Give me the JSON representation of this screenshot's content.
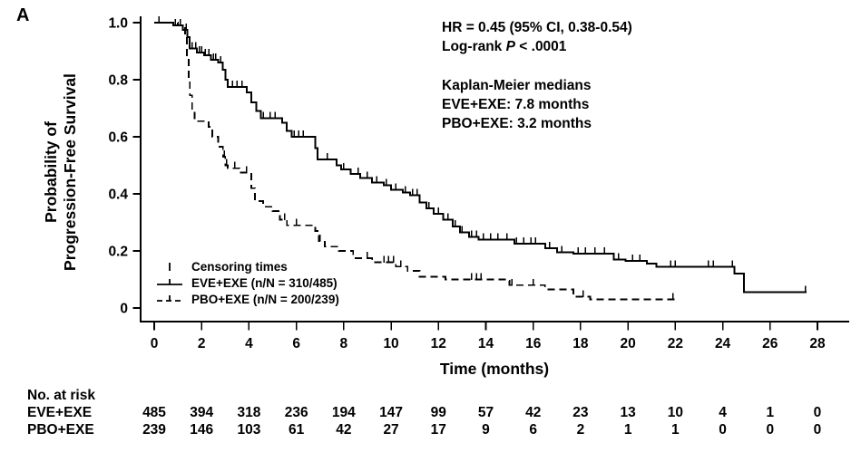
{
  "panel_label": "A",
  "y_axis": {
    "label_line1": "Probability of",
    "label_line2": "Progression-Free Survival",
    "ticks": [
      {
        "v": 1.0,
        "label": "1.0"
      },
      {
        "v": 0.8,
        "label": "0.8"
      },
      {
        "v": 0.6,
        "label": "0.6"
      },
      {
        "v": 0.4,
        "label": "0.4"
      },
      {
        "v": 0.2,
        "label": "0.2"
      },
      {
        "v": 0.0,
        "label": "0"
      }
    ]
  },
  "x_axis": {
    "label": "Time (months)",
    "ticks": [
      0,
      2,
      4,
      6,
      8,
      10,
      12,
      14,
      16,
      18,
      20,
      22,
      24,
      26,
      28
    ]
  },
  "annotations": {
    "hr_line": "HR = 0.45 (95% CI, 0.38-0.54)",
    "logrank_prefix": "Log-rank ",
    "logrank_p": "P",
    "logrank_suffix": " < .0001",
    "km_header": "Kaplan-Meier medians",
    "km_eve": "EVE+EXE: 7.8 months",
    "km_pbo": "PBO+EXE: 3.2 months"
  },
  "legend": {
    "items": [
      {
        "symbol": "censor-tick",
        "label": "Censoring times"
      },
      {
        "symbol": "solid-line-tick",
        "label": "EVE+EXE (n/N = 310/485)"
      },
      {
        "symbol": "dashed-line-tick",
        "label": "PBO+EXE (n/N = 200/239)"
      }
    ]
  },
  "risk_table": {
    "header": "No. at risk",
    "rows": [
      {
        "label": "EVE+EXE",
        "values": [
          485,
          394,
          318,
          236,
          194,
          147,
          99,
          57,
          42,
          23,
          13,
          10,
          4,
          1,
          0
        ]
      },
      {
        "label": "PBO+EXE",
        "values": [
          239,
          146,
          103,
          61,
          42,
          27,
          17,
          9,
          6,
          2,
          1,
          1,
          0,
          0,
          0
        ]
      }
    ]
  },
  "colors": {
    "ink": "#000000",
    "background": "#ffffff"
  },
  "chart_data": {
    "type": "line",
    "subtype": "kaplan-meier-step",
    "title": "",
    "xlabel": "Time (months)",
    "ylabel": "Probability of Progression-Free Survival",
    "xlim": [
      0,
      28
    ],
    "ylim": [
      0,
      1.0
    ],
    "grid": false,
    "legend_position": "inside-lower-left",
    "series": [
      {
        "name": "EVE+EXE",
        "style": "solid",
        "median_months": 7.8,
        "events_n_over_N": "310/485",
        "steps": [
          [
            0,
            1.0
          ],
          [
            0.8,
            0.99
          ],
          [
            1.2,
            0.975
          ],
          [
            1.4,
            0.95
          ],
          [
            1.5,
            0.91
          ],
          [
            1.8,
            0.895
          ],
          [
            2.1,
            0.885
          ],
          [
            2.4,
            0.87
          ],
          [
            2.7,
            0.86
          ],
          [
            2.9,
            0.835
          ],
          [
            3.0,
            0.8
          ],
          [
            3.1,
            0.775
          ],
          [
            3.9,
            0.755
          ],
          [
            4.1,
            0.72
          ],
          [
            4.3,
            0.69
          ],
          [
            4.5,
            0.665
          ],
          [
            5.4,
            0.65
          ],
          [
            5.6,
            0.62
          ],
          [
            5.8,
            0.6
          ],
          [
            6.8,
            0.56
          ],
          [
            6.9,
            0.52
          ],
          [
            7.7,
            0.5
          ],
          [
            7.9,
            0.485
          ],
          [
            8.3,
            0.47
          ],
          [
            8.7,
            0.455
          ],
          [
            9.2,
            0.44
          ],
          [
            9.7,
            0.43
          ],
          [
            10.0,
            0.415
          ],
          [
            10.5,
            0.405
          ],
          [
            10.8,
            0.395
          ],
          [
            11.2,
            0.37
          ],
          [
            11.5,
            0.35
          ],
          [
            11.8,
            0.33
          ],
          [
            12.2,
            0.31
          ],
          [
            12.6,
            0.285
          ],
          [
            12.9,
            0.265
          ],
          [
            13.3,
            0.25
          ],
          [
            13.7,
            0.24
          ],
          [
            15.2,
            0.225
          ],
          [
            16.5,
            0.21
          ],
          [
            17.0,
            0.195
          ],
          [
            17.7,
            0.19
          ],
          [
            19.4,
            0.17
          ],
          [
            19.9,
            0.165
          ],
          [
            20.8,
            0.155
          ],
          [
            21.2,
            0.145
          ],
          [
            24.5,
            0.12
          ],
          [
            24.9,
            0.055
          ]
        ],
        "end": 27.55,
        "censor_times": [
          0.2,
          0.9,
          1.1,
          1.35,
          1.6,
          1.75,
          1.9,
          2.0,
          2.15,
          2.3,
          2.5,
          2.6,
          2.8,
          3.3,
          3.5,
          3.7,
          4.6,
          4.9,
          5.1,
          5.9,
          6.1,
          6.3,
          7.3,
          8.0,
          8.6,
          9.0,
          9.4,
          9.8,
          10.2,
          10.6,
          10.9,
          11.1,
          11.6,
          12.0,
          12.4,
          12.7,
          13.0,
          13.4,
          13.6,
          13.9,
          14.2,
          14.5,
          14.9,
          15.3,
          15.6,
          15.9,
          16.1,
          16.7,
          17.2,
          17.9,
          18.2,
          18.6,
          19.0,
          19.6,
          20.2,
          20.5,
          21.8,
          22.0,
          23.4,
          23.6,
          24.4,
          27.5
        ]
      },
      {
        "name": "PBO+EXE",
        "style": "dashed",
        "median_months": 3.2,
        "events_n_over_N": "200/239",
        "steps": [
          [
            0,
            1.0
          ],
          [
            1.0,
            0.99
          ],
          [
            1.3,
            0.95
          ],
          [
            1.38,
            0.88
          ],
          [
            1.45,
            0.8
          ],
          [
            1.5,
            0.745
          ],
          [
            1.6,
            0.69
          ],
          [
            1.7,
            0.655
          ],
          [
            2.3,
            0.635
          ],
          [
            2.45,
            0.6
          ],
          [
            2.7,
            0.565
          ],
          [
            2.9,
            0.53
          ],
          [
            3.0,
            0.5
          ],
          [
            3.1,
            0.49
          ],
          [
            3.6,
            0.475
          ],
          [
            4.1,
            0.42
          ],
          [
            4.25,
            0.375
          ],
          [
            4.6,
            0.355
          ],
          [
            5.0,
            0.34
          ],
          [
            5.3,
            0.31
          ],
          [
            5.6,
            0.29
          ],
          [
            6.8,
            0.27
          ],
          [
            6.95,
            0.235
          ],
          [
            7.2,
            0.215
          ],
          [
            7.8,
            0.2
          ],
          [
            8.4,
            0.175
          ],
          [
            9.2,
            0.16
          ],
          [
            10.2,
            0.145
          ],
          [
            10.7,
            0.13
          ],
          [
            11.2,
            0.11
          ],
          [
            12.3,
            0.1
          ],
          [
            14.8,
            0.095
          ],
          [
            15.0,
            0.08
          ],
          [
            16.5,
            0.065
          ],
          [
            17.7,
            0.04
          ],
          [
            18.4,
            0.03
          ]
        ],
        "end": 22.1,
        "censor_times": [
          2.45,
          2.95,
          3.05,
          3.4,
          3.9,
          5.5,
          6.0,
          7.0,
          9.0,
          9.7,
          9.9,
          10.1,
          10.4,
          13.4,
          13.6,
          13.8,
          15.1,
          16.0,
          18.1,
          21.9
        ]
      }
    ],
    "stats": {
      "hr": "HR = 0.45 (95% CI, 0.38-0.54)",
      "logrank": "Log-rank P < .0001"
    }
  }
}
